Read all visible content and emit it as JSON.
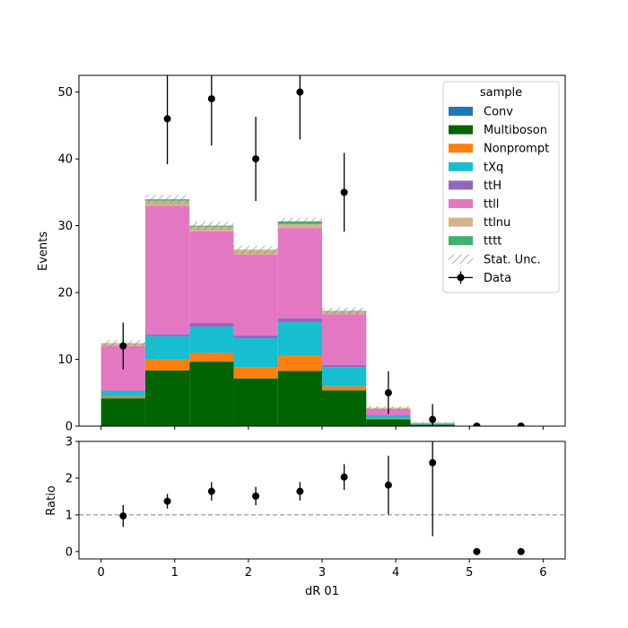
{
  "chart_data": [
    {
      "type": "bar",
      "stacked": true,
      "ylabel": "Events",
      "ylim": [
        0,
        52.5
      ],
      "xlim": [
        -0.3,
        6.3
      ],
      "yticks": [
        "0",
        "10",
        "20",
        "30",
        "40",
        "50"
      ],
      "bin_edges": [
        0.0,
        0.6,
        1.2,
        1.8,
        2.4,
        3.0,
        3.6,
        4.2,
        4.8,
        5.4,
        6.0
      ],
      "series": [
        {
          "name": "Conv",
          "color": "#1f77b4",
          "values": [
            0.05,
            0.05,
            0.05,
            0.05,
            0.05,
            0.05,
            0.02,
            0.01,
            0.0,
            0.0
          ]
        },
        {
          "name": "Multiboson",
          "color": "#006400",
          "values": [
            4.1,
            8.3,
            9.6,
            7.1,
            8.2,
            5.3,
            1.0,
            0.2,
            0.02,
            0.0
          ]
        },
        {
          "name": "Nonprompt",
          "color": "#ff7f0e",
          "values": [
            0.3,
            1.6,
            1.3,
            1.7,
            2.3,
            0.6,
            0.1,
            0.0,
            0.0,
            0.0
          ]
        },
        {
          "name": "tXq",
          "color": "#17becf",
          "values": [
            0.8,
            3.5,
            3.9,
            4.3,
            5.0,
            2.9,
            0.5,
            0.1,
            0.02,
            0.0
          ]
        },
        {
          "name": "ttH",
          "color": "#9467bd",
          "values": [
            0.1,
            0.3,
            0.6,
            0.4,
            0.6,
            0.3,
            0.05,
            0.02,
            0.0,
            0.0
          ]
        },
        {
          "name": "ttll",
          "color": "#e377c2",
          "values": [
            6.6,
            19.2,
            13.7,
            12.1,
            13.5,
            7.6,
            0.9,
            0.1,
            0.0,
            0.0
          ]
        },
        {
          "name": "ttlnu",
          "color": "#d2b48c",
          "values": [
            0.4,
            0.8,
            0.7,
            0.7,
            0.6,
            0.4,
            0.15,
            0.1,
            0.0,
            0.0
          ]
        },
        {
          "name": "tttt",
          "color": "#3cb371",
          "values": [
            0.05,
            0.2,
            0.15,
            0.05,
            0.4,
            0.1,
            0.02,
            0.01,
            0.0,
            0.0
          ]
        }
      ],
      "stat_unc": [
        0.45,
        0.65,
        0.6,
        0.6,
        0.55,
        0.5,
        0.25,
        0.1,
        0.02,
        0.0
      ],
      "data": {
        "name": "Data",
        "x": [
          0.3,
          0.9,
          1.5,
          2.1,
          2.7,
          3.3,
          3.9,
          4.5,
          5.1,
          5.7
        ],
        "y": [
          12,
          46,
          49,
          40,
          50,
          35,
          5,
          1,
          0,
          0
        ],
        "yerr": [
          3.5,
          6.8,
          7.0,
          6.3,
          7.1,
          5.9,
          3.2,
          2.3,
          0,
          0
        ]
      },
      "legend": {
        "title": "sample",
        "stat_label": "Stat. Unc.",
        "placement": "top-right"
      }
    },
    {
      "type": "scatter",
      "ylabel": "Ratio",
      "xlabel": "dR 01",
      "ylim": [
        -0.2,
        3.0
      ],
      "xlim": [
        -0.3,
        6.3
      ],
      "yticks": [
        "0",
        "1",
        "2",
        "3"
      ],
      "xticks": [
        "0",
        "1",
        "2",
        "3",
        "4",
        "5",
        "6"
      ],
      "reference_line": 1,
      "x": [
        0.3,
        0.9,
        1.5,
        2.1,
        2.7,
        3.3,
        3.9,
        4.5,
        5.1,
        5.7
      ],
      "y": [
        0.97,
        1.37,
        1.64,
        1.51,
        1.64,
        2.03,
        1.81,
        2.42,
        0.0,
        0.0
      ],
      "yerr": [
        0.3,
        0.2,
        0.25,
        0.25,
        0.25,
        0.35,
        0.8,
        2.0,
        0,
        0
      ]
    }
  ]
}
